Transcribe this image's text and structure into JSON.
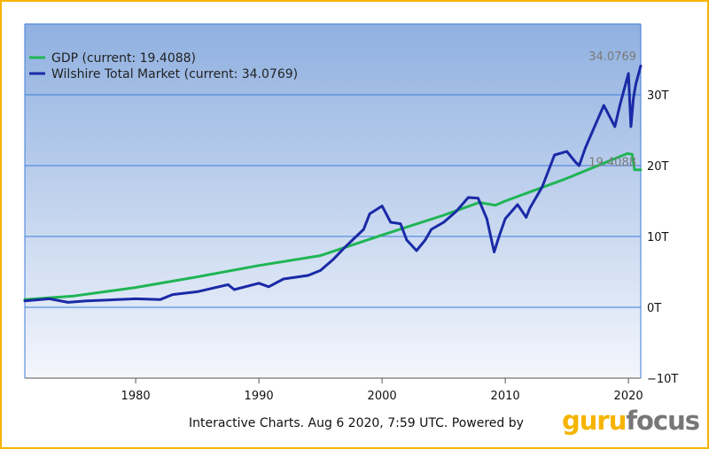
{
  "chart_data": {
    "type": "line",
    "x_range": [
      1971,
      2021
    ],
    "y_range": [
      -10,
      40
    ],
    "y_ticks": [
      {
        "value": -10,
        "label": "−10T"
      },
      {
        "value": 0,
        "label": "0T"
      },
      {
        "value": 10,
        "label": "10T"
      },
      {
        "value": 20,
        "label": "20T"
      },
      {
        "value": 30,
        "label": "30T"
      }
    ],
    "x_ticks": [
      {
        "value": 1980,
        "label": "1980"
      },
      {
        "value": 1990,
        "label": "1990"
      },
      {
        "value": 2000,
        "label": "2000"
      },
      {
        "value": 2010,
        "label": "2010"
      },
      {
        "value": 2020,
        "label": "2020"
      }
    ],
    "grid": true,
    "legend_position": "top-left",
    "series": [
      {
        "name": "GDP (current: 19.4088)",
        "color": "#1fb554",
        "end_label": "19.4088",
        "points": [
          [
            1971,
            1.1
          ],
          [
            1975,
            1.6
          ],
          [
            1980,
            2.8
          ],
          [
            1985,
            4.3
          ],
          [
            1990,
            5.9
          ],
          [
            1995,
            7.3
          ],
          [
            2000,
            10.2
          ],
          [
            2005,
            13.0
          ],
          [
            2007.9,
            14.8
          ],
          [
            2009.2,
            14.4
          ],
          [
            2010,
            15.0
          ],
          [
            2015,
            18.2
          ],
          [
            2019.9,
            21.7
          ],
          [
            2020.3,
            21.6
          ],
          [
            2020.5,
            19.4
          ],
          [
            2021,
            19.4088
          ]
        ]
      },
      {
        "name": "Wilshire Total Market (current: 34.0769)",
        "color": "#1a2aa6",
        "end_label": "34.0769",
        "points": [
          [
            1971,
            0.9
          ],
          [
            1973,
            1.2
          ],
          [
            1974.5,
            0.7
          ],
          [
            1976,
            0.9
          ],
          [
            1980,
            1.2
          ],
          [
            1982,
            1.1
          ],
          [
            1983,
            1.8
          ],
          [
            1985,
            2.2
          ],
          [
            1987.5,
            3.2
          ],
          [
            1988,
            2.5
          ],
          [
            1990,
            3.4
          ],
          [
            1990.8,
            2.9
          ],
          [
            1992,
            4.0
          ],
          [
            1994,
            4.5
          ],
          [
            1995,
            5.2
          ],
          [
            1996,
            6.7
          ],
          [
            1997,
            8.5
          ],
          [
            1998.5,
            11.0
          ],
          [
            1999,
            13.2
          ],
          [
            2000,
            14.3
          ],
          [
            2000.7,
            12.0
          ],
          [
            2001.5,
            11.8
          ],
          [
            2002,
            9.5
          ],
          [
            2002.8,
            8.0
          ],
          [
            2003.5,
            9.5
          ],
          [
            2004,
            11.0
          ],
          [
            2005,
            12.0
          ],
          [
            2006,
            13.5
          ],
          [
            2007,
            15.5
          ],
          [
            2007.8,
            15.4
          ],
          [
            2008.5,
            12.5
          ],
          [
            2009.1,
            7.8
          ],
          [
            2009.5,
            10.0
          ],
          [
            2010,
            12.5
          ],
          [
            2011,
            14.5
          ],
          [
            2011.7,
            12.7
          ],
          [
            2012,
            14.0
          ],
          [
            2013,
            17.0
          ],
          [
            2014,
            21.5
          ],
          [
            2015,
            22.0
          ],
          [
            2015.7,
            20.5
          ],
          [
            2016,
            20.0
          ],
          [
            2016.5,
            22.5
          ],
          [
            2017,
            24.5
          ],
          [
            2018,
            28.5
          ],
          [
            2018.9,
            25.5
          ],
          [
            2019.3,
            28.5
          ],
          [
            2020,
            33.0
          ],
          [
            2020.2,
            25.5
          ],
          [
            2020.4,
            29.5
          ],
          [
            2020.6,
            31.5
          ],
          [
            2021,
            34.0769
          ]
        ]
      }
    ]
  },
  "footer": {
    "text": "Interactive Charts. Aug 6 2020, 7:59 UTC. Powered by",
    "logo_part1": "guru",
    "logo_part2": "focus"
  }
}
